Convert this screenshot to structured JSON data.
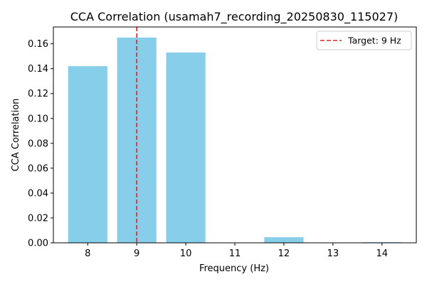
{
  "chart_data": {
    "type": "bar",
    "title": "CCA Correlation (usamah7_recording_20250830_115027)",
    "xlabel": "Frequency (Hz)",
    "ylabel": "CCA Correlation",
    "categories": [
      "8",
      "9",
      "10",
      "11",
      "12",
      "13",
      "14"
    ],
    "x": [
      8,
      9,
      10,
      11,
      12,
      13,
      14
    ],
    "values": [
      0.142,
      0.165,
      0.153,
      0.0,
      0.0045,
      0.0,
      0.0005
    ],
    "xlim": [
      7.3,
      14.7
    ],
    "ylim": [
      0,
      0.1735
    ],
    "yticks": [
      0.0,
      0.02,
      0.04,
      0.06,
      0.08,
      0.1,
      0.12,
      0.14,
      0.16
    ],
    "ytick_labels": [
      "0.00",
      "0.02",
      "0.04",
      "0.06",
      "0.08",
      "0.10",
      "0.12",
      "0.14",
      "0.16"
    ],
    "grid": false,
    "bar_color": "#87ceeb",
    "target": {
      "x": 9,
      "label": "Target: 9 Hz",
      "color": "#d62728"
    },
    "legend_position": "top-right"
  }
}
